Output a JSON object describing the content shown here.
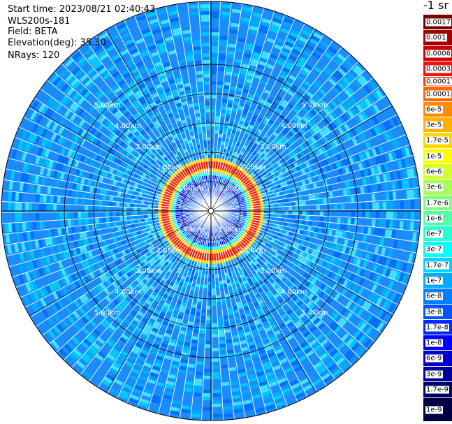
{
  "header": {
    "start_time": "Start time: 2023/08/21 02:40:43",
    "instrument": "WLS200s-181",
    "field": "Field: BETA",
    "elevation": "Elevation(deg): 35.30",
    "nrays": "NRays: 120"
  },
  "colorbar": {
    "unit_label": "-1 sr",
    "levels": [
      {
        "label": "0.0017",
        "color": "#7a0000"
      },
      {
        "label": "0.001",
        "color": "#a30000"
      },
      {
        "label": "0.0006",
        "color": "#cc0000"
      },
      {
        "label": "0.0003",
        "color": "#ee1010"
      },
      {
        "label": "0.00017",
        "color": "#ff3300"
      },
      {
        "label": "0.0001",
        "color": "#ff6600"
      },
      {
        "label": "6e-5",
        "color": "#ff8c00"
      },
      {
        "label": "3e-5",
        "color": "#ffb000"
      },
      {
        "label": "1.7e-5",
        "color": "#ffd700"
      },
      {
        "label": "1e-5",
        "color": "#ffff00"
      },
      {
        "label": "6e-6",
        "color": "#d4ff2a"
      },
      {
        "label": "3e-6",
        "color": "#a8ff55"
      },
      {
        "label": "1.7e-6",
        "color": "#7fff7f"
      },
      {
        "label": "1e-6",
        "color": "#55ffaa"
      },
      {
        "label": "6e-7",
        "color": "#2affd4"
      },
      {
        "label": "3e-7",
        "color": "#00ffff"
      },
      {
        "label": "1.7e-7",
        "color": "#00d4ff"
      },
      {
        "label": "1e-7",
        "color": "#00aaff"
      },
      {
        "label": "6e-8",
        "color": "#0080ff"
      },
      {
        "label": "3e-8",
        "color": "#0055ff"
      },
      {
        "label": "1.7e-8",
        "color": "#002aff"
      },
      {
        "label": "1e-8",
        "color": "#0000ff"
      },
      {
        "label": "6e-9",
        "color": "#0000cc"
      },
      {
        "label": "3e-9",
        "color": "#000099"
      },
      {
        "label": "1.7e-9",
        "color": "#000066"
      },
      {
        "label": "1e-9",
        "color": "#000044"
      }
    ]
  },
  "range_rings": [
    "1.00km",
    "2.00km",
    "3.00km",
    "4.00km",
    "5.00km"
  ],
  "ppi": {
    "nrays": 120,
    "max_range_km": 5.8,
    "aerosol_layer_km": [
      1.4,
      1.75
    ],
    "field_colors": {
      "background": "#1a8cff",
      "speckle": [
        "#00c8ff",
        "#00aaff",
        "#0070ff",
        "#40e0ff"
      ],
      "layer": [
        "#ff2000",
        "#ff8000",
        "#ffd000",
        "#00ffff"
      ],
      "near": [
        "#0000ff",
        "#0030ff",
        "#2020ff"
      ]
    }
  }
}
